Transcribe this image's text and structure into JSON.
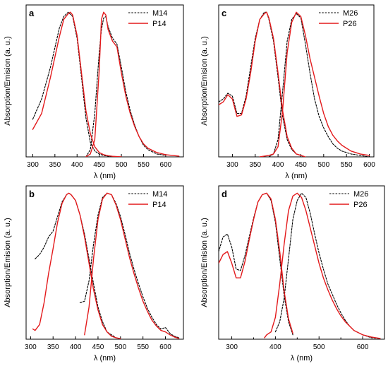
{
  "figure": {
    "styles": {
      "M": {
        "color": "#000000",
        "dash": "2.5,1.8",
        "width": 1.1
      },
      "P": {
        "color": "#e31a1c",
        "dash": "",
        "width": 1.4
      }
    }
  },
  "chart_data": [
    {
      "type": "line",
      "panel_label": "a",
      "xlabel": "λ (nm)",
      "ylabel": "Absorption/Emision (a. u.)",
      "xlim": [
        285,
        640
      ],
      "ylim": [
        0,
        1.05
      ],
      "xticks": [
        300,
        350,
        400,
        450,
        500,
        550,
        600
      ],
      "legend": "top-right",
      "series": [
        {
          "name": "M14",
          "style": "M",
          "segments": [
            {
              "x": [
                300,
                320,
                340,
                360,
                370,
                380,
                390,
                400,
                410,
                420,
                430,
                440,
                450,
                460,
                470,
                480,
                490,
                500
              ],
              "y": [
                0.26,
                0.4,
                0.62,
                0.89,
                0.97,
                1.0,
                0.97,
                0.82,
                0.55,
                0.27,
                0.1,
                0.04,
                0.02,
                0.01,
                0.005,
                0.003,
                0.001,
                0
              ]
            },
            {
              "x": [
                420,
                430,
                440,
                450,
                455,
                460,
                465,
                470,
                480,
                490,
                500,
                510,
                520,
                530,
                540,
                550,
                560,
                580,
                600
              ],
              "y": [
                0.0,
                0.05,
                0.3,
                0.72,
                0.88,
                0.96,
                0.97,
                0.9,
                0.82,
                0.78,
                0.62,
                0.45,
                0.32,
                0.22,
                0.14,
                0.08,
                0.05,
                0.02,
                0.01
              ]
            }
          ]
        },
        {
          "name": "P14",
          "style": "P",
          "segments": [
            {
              "x": [
                300,
                320,
                340,
                360,
                370,
                380,
                385,
                390,
                400,
                410,
                420,
                430,
                440,
                450,
                460,
                470,
                480,
                490,
                500
              ],
              "y": [
                0.19,
                0.3,
                0.55,
                0.83,
                0.95,
                0.99,
                1.0,
                0.98,
                0.84,
                0.58,
                0.32,
                0.16,
                0.07,
                0.03,
                0.015,
                0.008,
                0.004,
                0.002,
                0
              ]
            },
            {
              "x": [
                420,
                430,
                440,
                450,
                455,
                460,
                465,
                470,
                480,
                490,
                500,
                510,
                520,
                530,
                540,
                550,
                560,
                580,
                600,
                630
              ],
              "y": [
                0.0,
                0.02,
                0.12,
                0.6,
                0.95,
                1.0,
                0.98,
                0.88,
                0.8,
                0.76,
                0.58,
                0.42,
                0.3,
                0.21,
                0.14,
                0.09,
                0.06,
                0.03,
                0.015,
                0.005
              ]
            }
          ]
        }
      ]
    },
    {
      "type": "line",
      "panel_label": "c",
      "xlabel": "λ (nm)",
      "ylabel": "Absorption/Emision (a. u.)",
      "xlim": [
        270,
        610
      ],
      "ylim": [
        0,
        1.05
      ],
      "xticks": [
        300,
        350,
        400,
        450,
        500,
        550,
        600
      ],
      "legend": "top-right",
      "series": [
        {
          "name": "M26",
          "style": "M",
          "segments": [
            {
              "x": [
                270,
                280,
                290,
                300,
                310,
                320,
                330,
                340,
                350,
                360,
                370,
                375,
                380,
                390,
                400,
                410,
                420,
                430,
                440,
                450,
                460
              ],
              "y": [
                0.38,
                0.4,
                0.44,
                0.42,
                0.3,
                0.3,
                0.42,
                0.62,
                0.82,
                0.95,
                1.0,
                1.0,
                0.95,
                0.8,
                0.55,
                0.28,
                0.12,
                0.05,
                0.02,
                0.01,
                0
              ]
            },
            {
              "x": [
                380,
                390,
                400,
                410,
                420,
                430,
                440,
                450,
                460,
                470,
                480,
                490,
                500,
                510,
                520,
                530,
                540,
                560,
                580,
                600
              ],
              "y": [
                0.0,
                0.02,
                0.12,
                0.45,
                0.8,
                0.95,
                0.99,
                0.96,
                0.78,
                0.58,
                0.4,
                0.28,
                0.2,
                0.14,
                0.09,
                0.06,
                0.04,
                0.02,
                0.01,
                0
              ]
            }
          ]
        },
        {
          "name": "P26",
          "style": "P",
          "segments": [
            {
              "x": [
                270,
                280,
                290,
                300,
                310,
                320,
                330,
                340,
                350,
                360,
                370,
                375,
                380,
                390,
                400,
                410,
                420,
                430,
                440,
                450,
                460
              ],
              "y": [
                0.36,
                0.38,
                0.43,
                0.4,
                0.28,
                0.29,
                0.4,
                0.58,
                0.8,
                0.95,
                0.99,
                1.0,
                0.96,
                0.82,
                0.58,
                0.32,
                0.14,
                0.06,
                0.02,
                0.01,
                0
              ]
            },
            {
              "x": [
                360,
                370,
                380,
                390,
                400,
                410,
                420,
                430,
                440,
                450,
                460,
                470,
                480,
                490,
                500,
                510,
                520,
                530,
                540,
                560,
                580,
                600
              ],
              "y": [
                0.0,
                0.005,
                0.01,
                0.02,
                0.07,
                0.32,
                0.72,
                0.93,
                1.0,
                0.97,
                0.84,
                0.68,
                0.55,
                0.42,
                0.3,
                0.21,
                0.15,
                0.11,
                0.08,
                0.04,
                0.02,
                0.01
              ]
            }
          ]
        }
      ]
    },
    {
      "type": "line",
      "panel_label": "b",
      "xlabel": "λ (nm)",
      "ylabel": "Absorption/Emision (a. u.)",
      "xlim": [
        290,
        640
      ],
      "ylim": [
        0,
        1.05
      ],
      "xticks": [
        300,
        350,
        400,
        450,
        500,
        550,
        600
      ],
      "legend": "top-right",
      "series": [
        {
          "name": "M14",
          "style": "M",
          "segments": [
            {
              "x": [
                310,
                320,
                330,
                340,
                350,
                360,
                370,
                380,
                385,
                390,
                400,
                410,
                420,
                430,
                440,
                450,
                460,
                470,
                480,
                490,
                500
              ],
              "y": [
                0.55,
                0.58,
                0.63,
                0.7,
                0.74,
                0.84,
                0.94,
                0.99,
                1.0,
                0.99,
                0.95,
                0.85,
                0.72,
                0.55,
                0.38,
                0.22,
                0.12,
                0.05,
                0.03,
                0.01,
                0.005
              ]
            },
            {
              "x": [
                410,
                420,
                430,
                440,
                450,
                460,
                470,
                480,
                490,
                500,
                510,
                520,
                530,
                540,
                550,
                560,
                570,
                580,
                590,
                600,
                610,
                620,
                630
              ],
              "y": [
                0.25,
                0.26,
                0.4,
                0.65,
                0.85,
                0.97,
                1.0,
                0.99,
                0.93,
                0.84,
                0.72,
                0.59,
                0.48,
                0.38,
                0.29,
                0.21,
                0.15,
                0.1,
                0.07,
                0.08,
                0.04,
                0.02,
                0.01
              ]
            }
          ]
        },
        {
          "name": "P14",
          "style": "P",
          "segments": [
            {
              "x": [
                305,
                310,
                320,
                330,
                340,
                350,
                360,
                370,
                380,
                385,
                390,
                400,
                410,
                420,
                430,
                440,
                450,
                460,
                470,
                480,
                490,
                500
              ],
              "y": [
                0.07,
                0.06,
                0.1,
                0.25,
                0.45,
                0.62,
                0.8,
                0.93,
                0.99,
                1.0,
                0.99,
                0.95,
                0.85,
                0.7,
                0.52,
                0.34,
                0.2,
                0.1,
                0.05,
                0.02,
                0.01,
                0.003
              ]
            },
            {
              "x": [
                420,
                430,
                440,
                450,
                460,
                470,
                480,
                490,
                500,
                510,
                520,
                530,
                540,
                550,
                560,
                570,
                580,
                590,
                600,
                610,
                620,
                630
              ],
              "y": [
                0.03,
                0.22,
                0.55,
                0.82,
                0.96,
                1.0,
                0.99,
                0.92,
                0.82,
                0.69,
                0.56,
                0.45,
                0.35,
                0.26,
                0.19,
                0.13,
                0.09,
                0.06,
                0.05,
                0.03,
                0.015,
                0.005
              ]
            }
          ]
        }
      ]
    },
    {
      "type": "line",
      "panel_label": "d",
      "xlabel": "λ (nm)",
      "ylabel": "Absorption/Emision (a. u.)",
      "xlim": [
        270,
        650
      ],
      "ylim": [
        0,
        1.05
      ],
      "xticks": [
        300,
        400,
        500,
        600
      ],
      "minor_xticks": [
        350,
        450,
        550
      ],
      "legend": "top-right",
      "series": [
        {
          "name": "M26",
          "style": "M",
          "segments": [
            {
              "x": [
                270,
                280,
                290,
                300,
                310,
                320,
                330,
                340,
                350,
                360,
                370,
                380,
                390,
                400,
                410,
                420,
                430,
                440
              ],
              "y": [
                0.6,
                0.7,
                0.72,
                0.63,
                0.48,
                0.47,
                0.57,
                0.7,
                0.83,
                0.94,
                0.99,
                1.0,
                0.95,
                0.8,
                0.55,
                0.3,
                0.12,
                0.03
              ]
            },
            {
              "x": [
                400,
                410,
                420,
                430,
                440,
                450,
                460,
                470,
                480,
                490,
                500,
                510,
                520,
                530,
                540,
                550,
                560,
                570,
                580,
                600,
                620,
                640
              ],
              "y": [
                0.05,
                0.12,
                0.28,
                0.55,
                0.82,
                0.95,
                1.0,
                0.97,
                0.86,
                0.72,
                0.59,
                0.48,
                0.38,
                0.31,
                0.24,
                0.18,
                0.13,
                0.09,
                0.06,
                0.03,
                0.01,
                0.005
              ]
            }
          ]
        },
        {
          "name": "P26",
          "style": "P",
          "segments": [
            {
              "x": [
                270,
                280,
                290,
                300,
                310,
                320,
                330,
                340,
                350,
                360,
                370,
                380,
                390,
                400,
                410,
                420,
                430,
                440
              ],
              "y": [
                0.52,
                0.58,
                0.6,
                0.52,
                0.42,
                0.42,
                0.53,
                0.68,
                0.82,
                0.94,
                0.99,
                1.0,
                0.96,
                0.82,
                0.6,
                0.33,
                0.14,
                0.04
              ]
            },
            {
              "x": [
                375,
                380,
                390,
                400,
                410,
                420,
                430,
                440,
                450,
                460,
                470,
                480,
                490,
                500,
                510,
                520,
                530,
                540,
                550,
                560,
                580,
                600,
                620,
                640
              ],
              "y": [
                0.01,
                0.03,
                0.05,
                0.15,
                0.38,
                0.65,
                0.88,
                0.98,
                1.0,
                0.97,
                0.88,
                0.76,
                0.64,
                0.52,
                0.42,
                0.34,
                0.27,
                0.21,
                0.16,
                0.12,
                0.06,
                0.03,
                0.015,
                0.005
              ]
            }
          ]
        }
      ]
    }
  ]
}
